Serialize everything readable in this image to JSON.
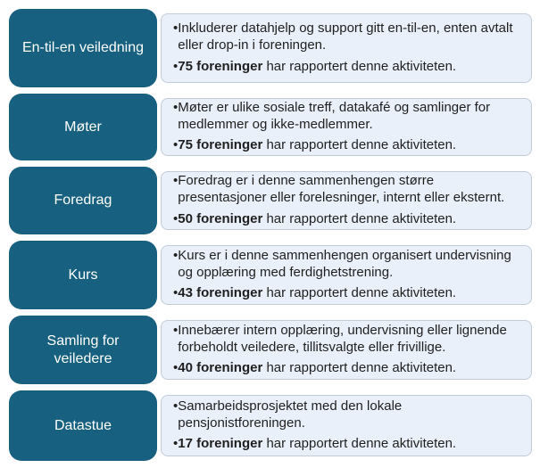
{
  "colors": {
    "teal": "#17607F",
    "box_bg": "#EAF0F9",
    "box_border": "#C3CBD6",
    "text": "#1F1F1F",
    "label_text": "#FFFFFF",
    "page_bg": "#FFFFFF"
  },
  "bullet_glyph": "•",
  "rows": [
    {
      "label": "En-til-en veiledning",
      "bullets": [
        {
          "bold": "",
          "rest": "Inkluderer datahjelp og support gitt en-til-en, enten avtalt eller drop-in i foreningen."
        },
        {
          "bold": "75 foreninger",
          "rest": " har rapportert denne aktiviteten."
        }
      ]
    },
    {
      "label": "Møter",
      "bullets": [
        {
          "bold": "",
          "rest": "Møter er ulike sosiale treff, datakafé og samlinger for medlemmer og ikke-medlemmer."
        },
        {
          "bold": "75 foreninger",
          "rest": " har rapportert denne aktiviteten."
        }
      ]
    },
    {
      "label": "Foredrag",
      "bullets": [
        {
          "bold": "",
          "rest": "Foredrag er i denne sammenhengen større presentasjoner eller forelesninger, internt eller eksternt."
        },
        {
          "bold": "50 foreninger",
          "rest": " har rapportert denne aktiviteten."
        }
      ]
    },
    {
      "label": "Kurs",
      "bullets": [
        {
          "bold": "",
          "rest": "Kurs er i denne sammenhengen organisert undervisning og opplæring med ferdighetstrening."
        },
        {
          "bold": "43 foreninger",
          "rest": " har rapportert denne aktiviteten."
        }
      ]
    },
    {
      "label": "Samling for veiledere",
      "bullets": [
        {
          "bold": "",
          "rest": "Innebærer intern opplæring, undervisning eller lignende forbeholdt veiledere, tillitsvalgte eller frivillige."
        },
        {
          "bold": "40 foreninger",
          "rest": " har rapportert denne aktiviteten."
        }
      ]
    },
    {
      "label": "Datastue",
      "bullets": [
        {
          "bold": "",
          "rest": "Samarbeidsprosjektet med den lokale pensjonistforeningen."
        },
        {
          "bold": "17 foreninger",
          "rest": " har rapportert denne aktiviteten."
        }
      ]
    }
  ]
}
